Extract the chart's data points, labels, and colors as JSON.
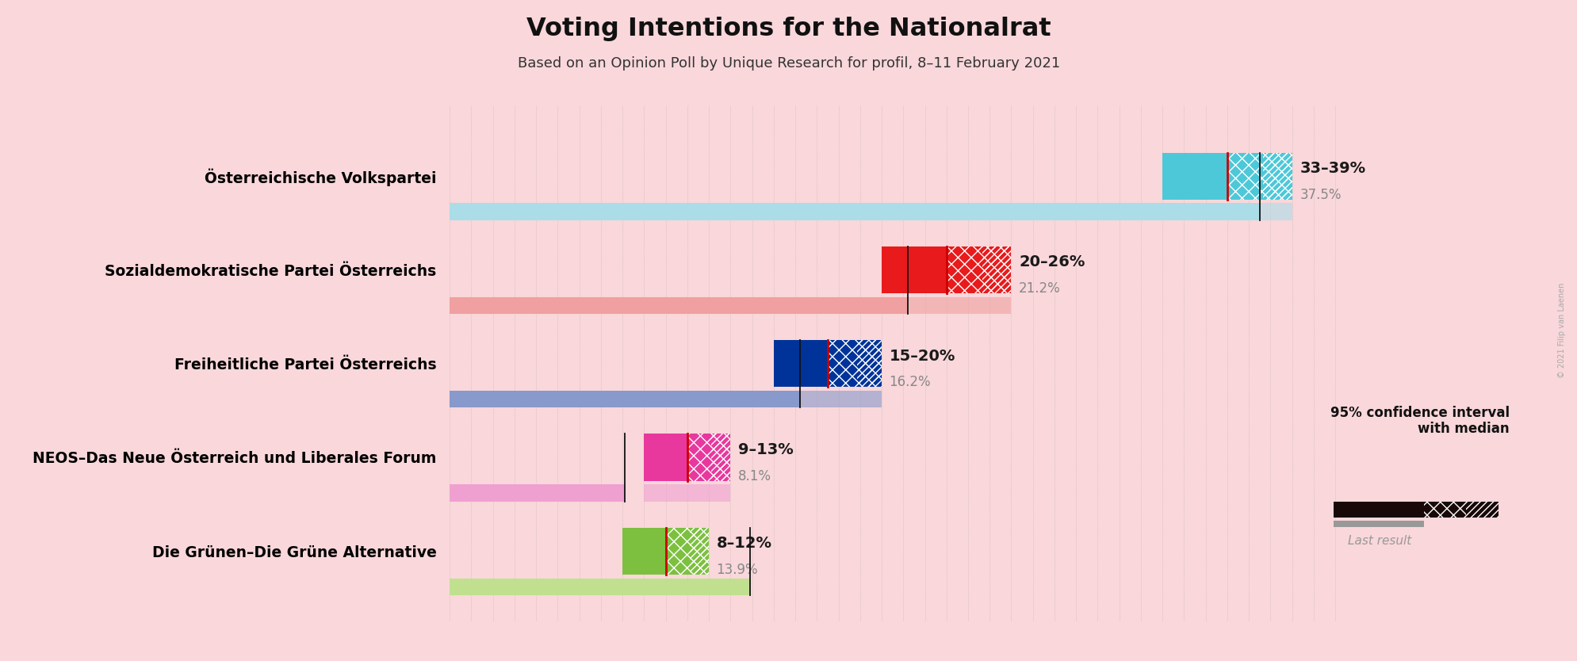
{
  "title": "Voting Intentions for the Nationalrat",
  "subtitle": "Based on an Opinion Poll by Unique Research for profil, 8–11 February 2021",
  "background_color": "#f9d7da",
  "parties": [
    "Österreichische Volkspartei",
    "Sozialdemokratische Partei Österreichs",
    "Freiheitliche Partei Österreichs",
    "NEOS–Das Neue Österreich und Liberales Forum",
    "Die Grünen–Die Grüne Alternative"
  ],
  "ci_low": [
    33,
    20,
    15,
    9,
    8
  ],
  "ci_high": [
    39,
    26,
    20,
    13,
    12
  ],
  "median": [
    36,
    23,
    17.5,
    11,
    10
  ],
  "last_result": [
    37.5,
    21.2,
    16.2,
    8.1,
    13.9
  ],
  "range_labels": [
    "33–39%",
    "20–26%",
    "15–20%",
    "9–13%",
    "8–12%"
  ],
  "colors": [
    "#4dc8d8",
    "#e81a1c",
    "#003399",
    "#e8389e",
    "#7dc040"
  ],
  "colors_light": [
    "#aadde8",
    "#f0a0a0",
    "#8899cc",
    "#f0a0d0",
    "#c0e090"
  ],
  "median_line_color": "#cc0000",
  "bar_height": 0.5,
  "last_result_bar_height": 0.18,
  "xlim_max": 42,
  "copyright": "© 2021 Filip van Laenen"
}
